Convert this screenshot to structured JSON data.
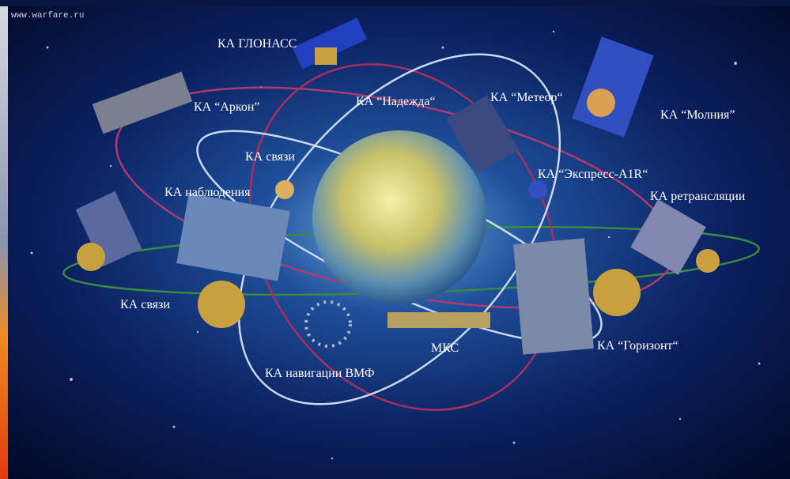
{
  "watermark": "www.warfare.ru",
  "nodes": [
    {
      "label": "КА ГЛОНАСС"
    },
    {
      "label": "КА “Аркон”"
    },
    {
      "label": "КА “Надежда“"
    },
    {
      "label": "КА “Метеор“"
    },
    {
      "label": "КА “Молния”"
    },
    {
      "label": "КА связи"
    },
    {
      "label": "КА наблюдения"
    },
    {
      "label": "КА “Экспресс-A1R“"
    },
    {
      "label": "КА ретрансляции"
    },
    {
      "label": "КА связи"
    },
    {
      "label": "МКС"
    },
    {
      "label": "КА “Горизонт“"
    },
    {
      "label": "КА навигации ВМФ"
    }
  ]
}
